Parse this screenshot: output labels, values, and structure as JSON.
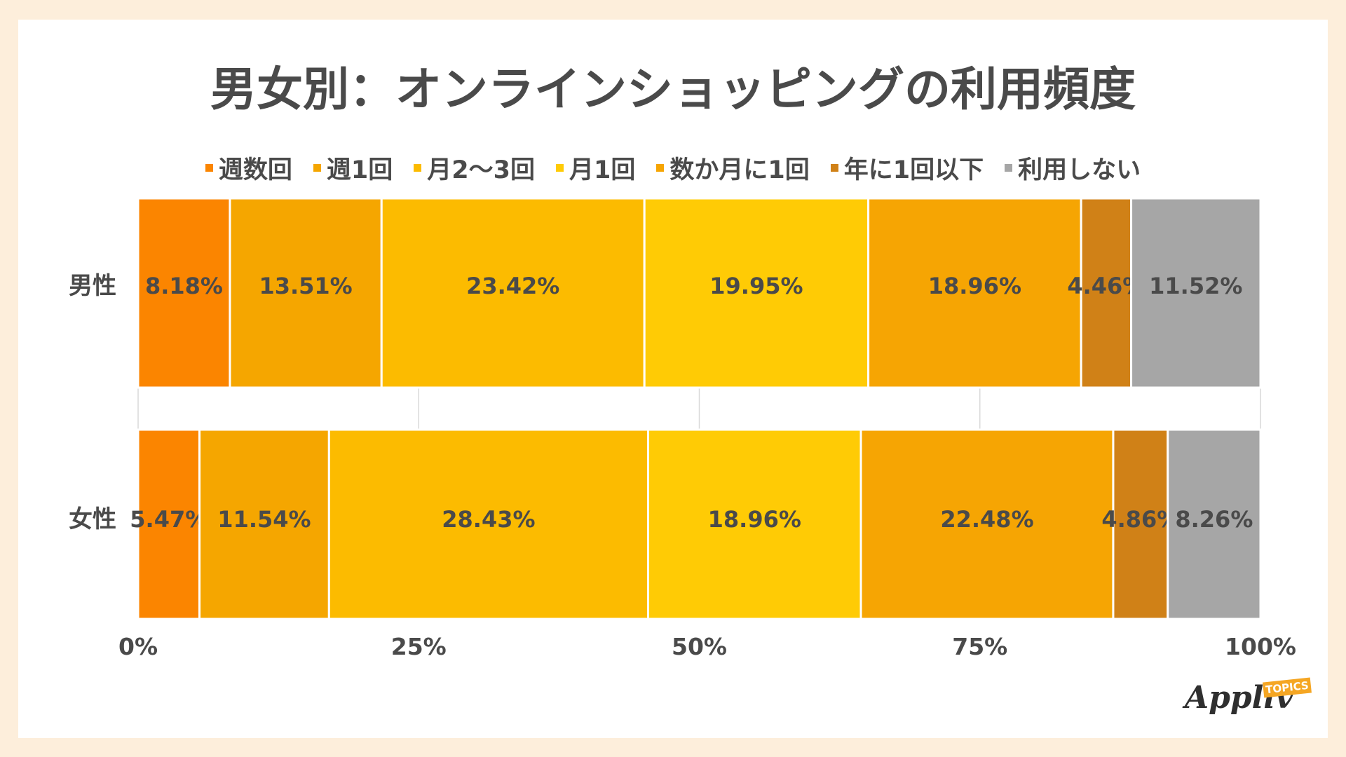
{
  "chart_data": {
    "type": "bar",
    "orientation": "horizontal",
    "stacked": "percent",
    "title": "男女別：オンラインショッピングの利用頻度",
    "categories": [
      "男性",
      "女性"
    ],
    "series": [
      {
        "name": "週数回",
        "color": "#fb8500",
        "values": [
          8.18,
          5.47
        ],
        "labels": [
          "8.18%",
          "5.47%"
        ]
      },
      {
        "name": "週1回",
        "color": "#f5a600",
        "values": [
          13.51,
          11.54
        ],
        "labels": [
          "13.51%",
          "11.54%"
        ]
      },
      {
        "name": "月2〜3回",
        "color": "#fcbb00",
        "values": [
          23.42,
          28.43
        ],
        "labels": [
          "23.42%",
          "28.43%"
        ]
      },
      {
        "name": "月1回",
        "color": "#ffcb05",
        "values": [
          19.95,
          18.96
        ],
        "labels": [
          "19.95%",
          "18.96%"
        ]
      },
      {
        "name": "数か月に1回",
        "color": "#f6a503",
        "values": [
          18.96,
          22.48
        ],
        "labels": [
          "18.96%",
          "22.48%"
        ]
      },
      {
        "name": "年に1回以下",
        "color": "#d08117",
        "values": [
          4.46,
          4.86
        ],
        "labels": [
          "4.46%",
          "4.86%"
        ]
      },
      {
        "name": "利用しない",
        "color": "#a6a6a6",
        "values": [
          11.52,
          8.26
        ],
        "labels": [
          "11.52%",
          "8.26%"
        ]
      }
    ],
    "xlim": [
      0,
      100
    ],
    "xticks": [
      0,
      25,
      50,
      75,
      100
    ],
    "xtick_labels": [
      "0%",
      "25%",
      "50%",
      "75%",
      "100%"
    ],
    "grid": true,
    "legend_position": "top"
  },
  "logo": {
    "name": "Appliv",
    "tag": "TOPICS"
  }
}
